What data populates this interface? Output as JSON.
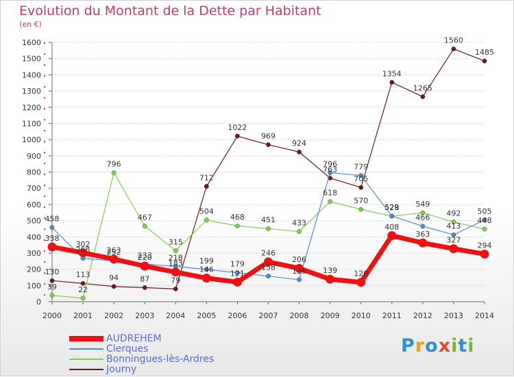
{
  "title": "Evolution du Montant de la Dette par Habitant",
  "unit_label": "(en €)",
  "logo_text": "Proxiti",
  "chart_data": {
    "type": "line",
    "x": [
      "2000",
      "2001",
      "2002",
      "2003",
      "2004",
      "2005",
      "2006",
      "2007",
      "2008",
      "2009",
      "2010",
      "2011",
      "2012",
      "2013",
      "2014"
    ],
    "ylim": [
      0,
      1600
    ],
    "yticks": [
      0,
      100,
      200,
      300,
      400,
      500,
      600,
      700,
      800,
      900,
      1000,
      1100,
      1200,
      1300,
      1400,
      1500,
      1600
    ],
    "grid": "horizontal",
    "legend_position": "bottom-left",
    "series": [
      {
        "name": "AUDREHEM",
        "color": "#ee1111",
        "values": [
          338,
          302,
          263,
          220,
          183,
          146,
          121,
          246,
          206,
          139,
          120,
          408,
          363,
          327,
          294
        ],
        "labels": [
          "338",
          "302",
          "263",
          "220",
          "183",
          "146",
          "121",
          "246",
          "206",
          "139",
          "120",
          "408",
          "363",
          "327",
          "294"
        ]
      },
      {
        "name": "Clerques",
        "color": "#4a8fd4",
        "values": [
          458,
          268,
          252,
          233,
          218,
          199,
          179,
          158,
          136,
          796,
          779,
          529,
          466,
          413,
          505
        ],
        "labels": [
          "458",
          "268",
          "252",
          "233",
          "218",
          "199",
          "179",
          "158",
          "136",
          "796",
          "779",
          "529",
          "466",
          "413",
          "505"
        ]
      },
      {
        "name": "Bonningues-lès-Ardres",
        "color": "#7ed04b",
        "values": [
          39,
          22,
          796,
          467,
          315,
          504,
          468,
          451,
          433,
          618,
          570,
          528,
          549,
          492,
          448
        ],
        "labels": [
          "39",
          "22",
          "796",
          "467",
          "315",
          "504",
          "468",
          "451",
          "433",
          "618",
          "570",
          "528",
          "549",
          "492",
          "448"
        ]
      },
      {
        "name": "Journy",
        "color": "#6b1a1a",
        "values": [
          130,
          113,
          94,
          87,
          79,
          712,
          1022,
          969,
          924,
          763,
          705,
          1354,
          1265,
          1560,
          1485
        ],
        "labels": [
          "130",
          "113",
          "94",
          "87",
          "79",
          "712",
          "1022",
          "969",
          "924",
          "763",
          "705",
          "1354",
          "1265",
          "1560",
          "1485"
        ]
      }
    ]
  }
}
